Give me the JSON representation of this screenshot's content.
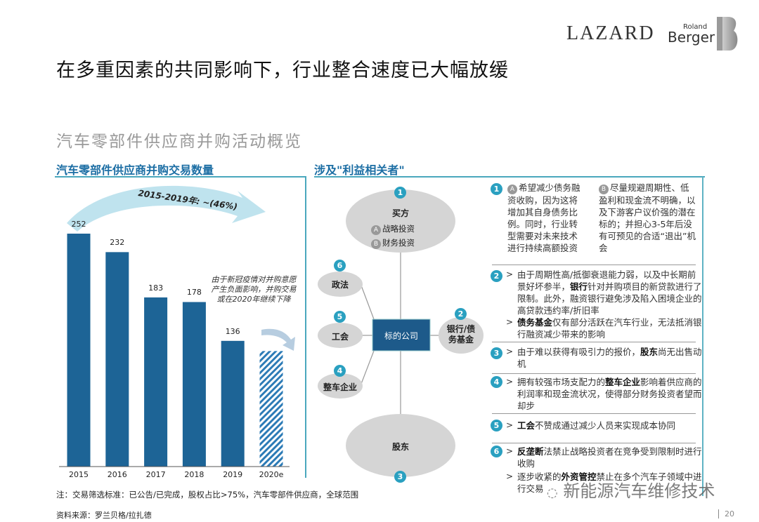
{
  "header": {
    "title": "在多重因素的共同影响下，行业整合速度已大幅放缓",
    "subtitle": "汽车零部件供应商并购活动概览",
    "logo_lazard": "LAZARD",
    "logo_roland": "Roland",
    "logo_berger": "Berger"
  },
  "left_section": {
    "heading": "汽车零部件供应商并购交易数量",
    "arrow_label": "2015-2019年: ~(46%)",
    "annotation": "由于新冠疫情对并购意愿产生负面影响，并购交易或在2020年继续下降"
  },
  "chart_data": {
    "type": "bar",
    "title": "汽车零部件供应商并购交易数量",
    "categories": [
      "2015",
      "2016",
      "2017",
      "2018",
      "2019",
      "2020e"
    ],
    "values": [
      252,
      232,
      183,
      178,
      136,
      125
    ],
    "labels": [
      "252",
      "232",
      "183",
      "178",
      "136",
      ""
    ],
    "estimated_last": true,
    "colors": {
      "bar": "#1d6496",
      "forecast": "#2c7bb6",
      "arrow": "#bfe3ee"
    },
    "ylim": [
      0,
      260
    ],
    "grid": false
  },
  "right_section": {
    "heading": "涉及\"利益相关者\"",
    "diagram": {
      "buyer": {
        "num": "1",
        "label": "买方",
        "a_mark": "A",
        "a": "战略投资",
        "b_mark": "B",
        "b": "财务投资"
      },
      "center": "标的公司",
      "nodes": [
        {
          "num": "6",
          "label": "政法"
        },
        {
          "num": "5",
          "label": "工会"
        },
        {
          "num": "4",
          "label": "整车企业"
        },
        {
          "num": "2",
          "label": "银行/债务基金"
        },
        {
          "num": "3",
          "label": "股东"
        }
      ]
    },
    "items": [
      {
        "num": "1",
        "a_mark": "A",
        "a": "希望减少债务融资收购，因为这将增加其自身债务比例。同时，行业转型需要对未来技术进行持续高额投资",
        "b_mark": "B",
        "b": "尽量规避周期性、低盈利和现金流不明确，以及下游客户议价强的潜在标的；并担心3-5年后没有可预见的合适“退出”机会"
      },
      {
        "num": "2",
        "p1_pre": "由于周期性高/抵御衰退能力弱，以及中长期前景好坏参半，",
        "p1_bold": "银行",
        "p1_post": "针对并购项目的新贷款进行了限制。此外，融资银行避免涉及陷入困境企业的高贷款违约率/折旧率",
        "p2_bold": "债务基金",
        "p2_post": "仅有部分活跃在汽车行业，无法抵消银行融资减少带来的影响"
      },
      {
        "num": "3",
        "pre": "由于难以获得有吸引力的报价，",
        "bold": "股东",
        "post": "尚无出售动机"
      },
      {
        "num": "4",
        "pre": "拥有较强市场支配力的",
        "bold": "整车企业",
        "post": "影响着供应商的利润率和现金流状况，使得部分财务投资者望而却步"
      },
      {
        "num": "5",
        "bold": "工会",
        "post": "不赞成通过减少人员来实现成本协同"
      },
      {
        "num": "6",
        "p1_bold": "反垄断",
        "p1_post": "法禁止战略投资者在竞争受到限制时进行收购",
        "p2_pre": "逐步收紧的",
        "p2_bold": "外资管控",
        "p2_post": "禁止在多个汽车子领域中进行交易"
      }
    ],
    "bullet": ">"
  },
  "footer": {
    "note": "注：交易筛选标准：已公告/已完成，股权占比>75%，汽车零部件供应商，全球范围",
    "source": "资料来源：罗兰贝格/拉扎德",
    "page": "20",
    "watermark": "新能源汽车维修技术"
  }
}
